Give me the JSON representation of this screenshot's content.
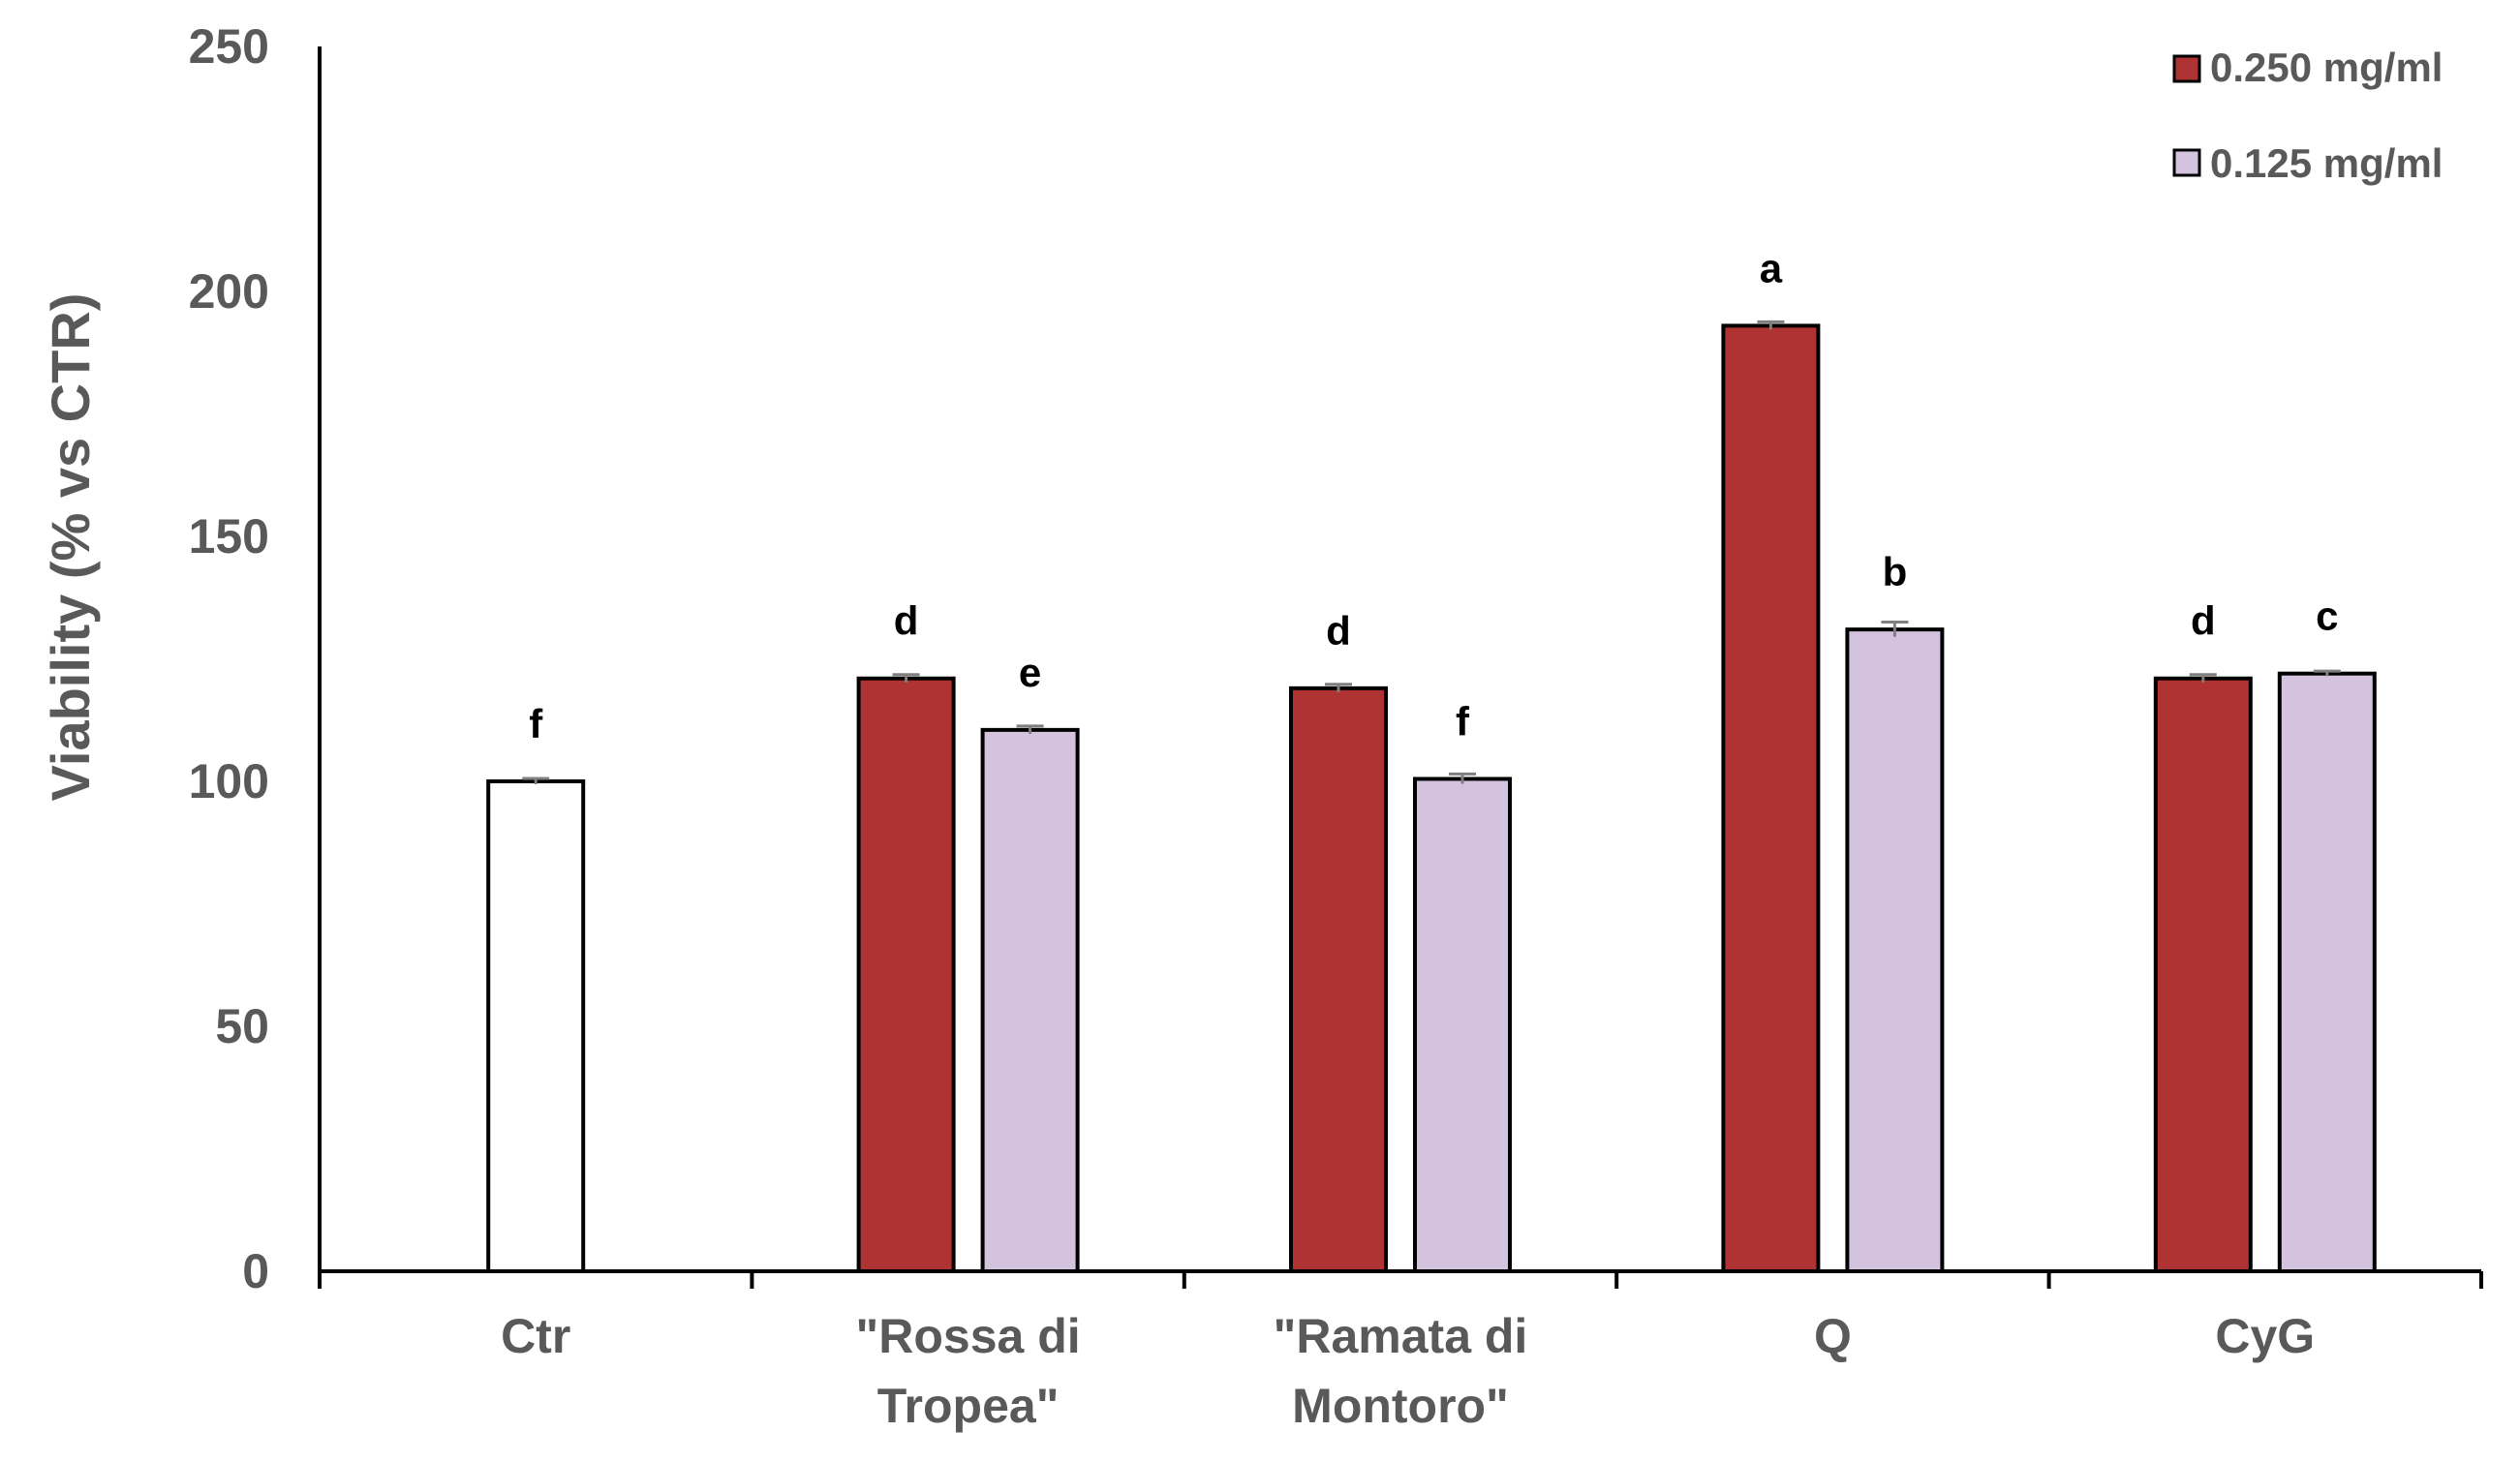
{
  "chart_data": {
    "type": "bar",
    "title": "",
    "xlabel": "",
    "ylabel": "Viability (% vs CTR)",
    "ylim": [
      0,
      250
    ],
    "yticks": [
      "0",
      "50",
      "100",
      "150",
      "200",
      "250"
    ],
    "grid": false,
    "legend_position": "top-right",
    "categories": [
      [
        "Ctr"
      ],
      [
        "\"Rossa di",
        "Tropea\""
      ],
      [
        "\"Ramata di",
        "Montoro\""
      ],
      [
        "Q"
      ],
      [
        "CyG"
      ]
    ],
    "series": [
      {
        "name": "0.250 mg/ml",
        "color": "#b03333",
        "values": [
          null,
          121,
          119,
          193,
          121
        ],
        "errors": [
          null,
          0.8,
          0.8,
          0.8,
          0.8
        ],
        "labels": [
          null,
          "d",
          "d",
          "a",
          "d"
        ]
      },
      {
        "name": "0.125 mg/ml",
        "color": "#d3c3de",
        "values": [
          null,
          110.5,
          100.5,
          131,
          122
        ],
        "errors": [
          null,
          0.8,
          1.0,
          1.5,
          0.5
        ],
        "labels": [
          null,
          "e",
          "f",
          "b",
          "c"
        ]
      }
    ],
    "control": {
      "category_index": 0,
      "value": 100,
      "error": 0.6,
      "label": "f",
      "color": "#ffffff"
    }
  }
}
